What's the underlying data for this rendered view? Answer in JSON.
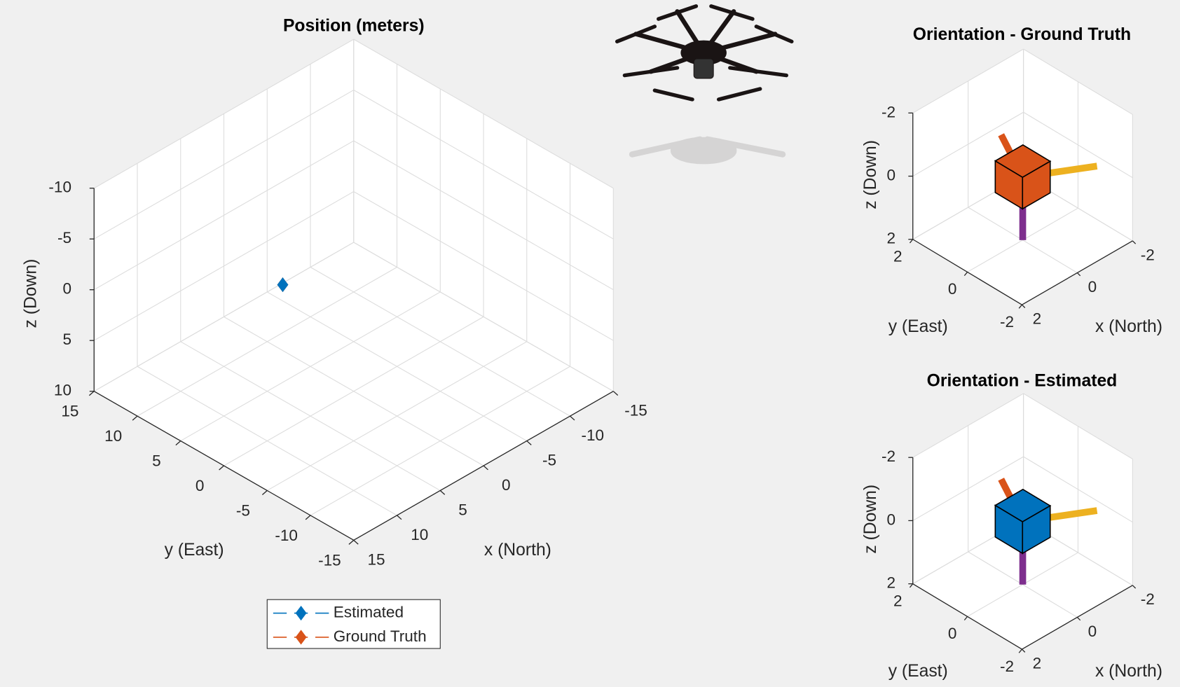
{
  "chart_data": [
    {
      "type": "scatter3d",
      "title": "Position (meters)",
      "x_label": "x (North)",
      "y_label": "y (East)",
      "z_label": "z (Down)",
      "xlim": [
        -15,
        15
      ],
      "ylim": [
        -15,
        15
      ],
      "zlim": [
        -10,
        10
      ],
      "xticks": [
        -15,
        -10,
        -5,
        0,
        5,
        10,
        15
      ],
      "yticks": [
        -15,
        -10,
        -5,
        0,
        5,
        10,
        15
      ],
      "zticks": [
        -10,
        -5,
        0,
        5,
        10
      ],
      "grid": true,
      "series": [
        {
          "name": "Estimated",
          "color": "#0072bd",
          "x": [
            3.6
          ],
          "y": [
            4.6
          ],
          "z": [
            0
          ]
        },
        {
          "name": "Ground Truth",
          "color": "#d95319",
          "x": [
            3.6
          ],
          "y": [
            4.6
          ],
          "z": [
            0
          ]
        }
      ]
    },
    {
      "type": "orientation",
      "title": "Orientation - Ground Truth",
      "x_label": "x (North)",
      "y_label": "y (East)",
      "z_label": "z (Down)",
      "xlim": [
        -2,
        2
      ],
      "ylim": [
        -2,
        2
      ],
      "zlim": [
        -2,
        2
      ],
      "xticks": [
        -2,
        0,
        2
      ],
      "yticks": [
        -2,
        0,
        2
      ],
      "zticks": [
        -2,
        0,
        2
      ],
      "grid": true,
      "color": "#d95319"
    },
    {
      "type": "orientation",
      "title": "Orientation - Estimated",
      "x_label": "x (North)",
      "y_label": "y (East)",
      "z_label": "z (Down)",
      "xlim": [
        -2,
        2
      ],
      "ylim": [
        -2,
        2
      ],
      "zlim": [
        -2,
        2
      ],
      "xticks": [
        -2,
        0,
        2
      ],
      "yticks": [
        -2,
        0,
        2
      ],
      "zticks": [
        -2,
        0,
        2
      ],
      "grid": true,
      "color": "#0072bd"
    }
  ]
}
